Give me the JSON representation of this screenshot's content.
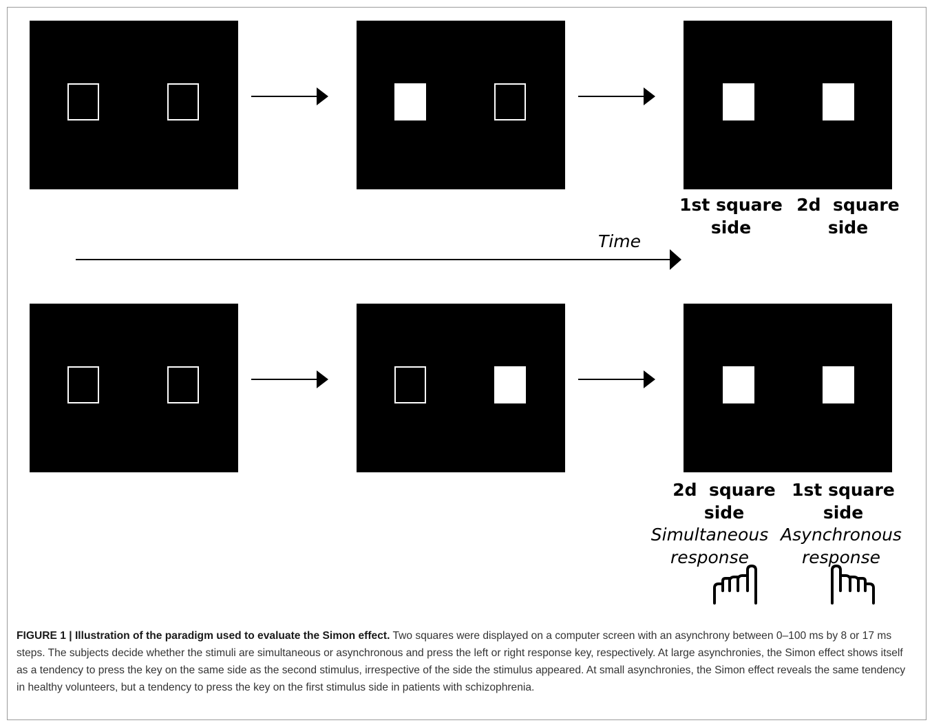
{
  "diagram": {
    "top_row_labels": {
      "left_label": [
        "1st square",
        "side"
      ],
      "right_label": [
        "2d  square",
        "side"
      ]
    },
    "time_label": "Time",
    "bottom_row_labels": {
      "left_label": [
        "2d  square",
        "side"
      ],
      "right_label": [
        "1st square",
        "side"
      ],
      "left_response": [
        "Simultaneous",
        "response"
      ],
      "right_response": [
        "Asynchronous",
        "response"
      ]
    },
    "icons": [
      "hand-pointer-icon",
      "hand-pointer-icon"
    ]
  },
  "caption": {
    "figure_label": "FIGURE 1 | Illustration of the paradigm used to evaluate the Simon effect.",
    "text": " Two squares were displayed on a computer screen with an asynchrony between 0–100 ms by 8 or 17 ms steps. The subjects decide whether the stimuli are simultaneous or asynchronous and press the left or right response key, respectively. At large asynchronies, the Simon effect shows itself as a tendency to press the key on the same side as the second stimulus, irrespective of the side the stimulus appeared. At small asynchronies, the Simon effect reveals the same tendency in healthy volunteers, but a tendency to press the key on the first stimulus side in patients with schizophrenia."
  }
}
